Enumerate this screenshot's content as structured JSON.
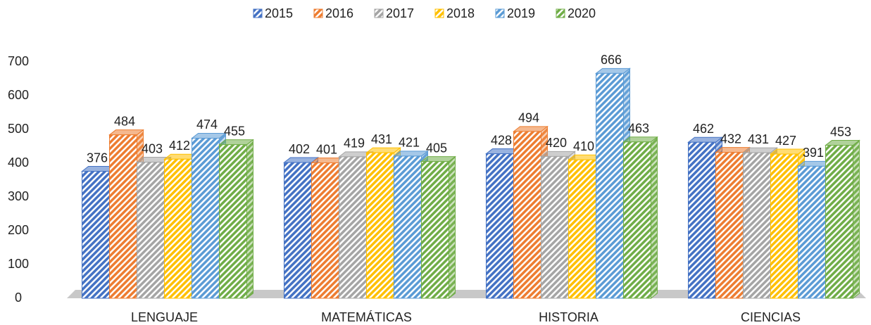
{
  "chart_data": {
    "type": "bar3d",
    "categories": [
      "LENGUAJE",
      "MATEMÁTICAS",
      "HISTORIA",
      "CIENCIAS"
    ],
    "series": [
      {
        "name": "2015",
        "color": "#4472c4",
        "values": [
          376,
          402,
          428,
          462
        ]
      },
      {
        "name": "2016",
        "color": "#ed7d31",
        "values": [
          484,
          401,
          494,
          432
        ]
      },
      {
        "name": "2017",
        "color": "#a5a5a5",
        "values": [
          403,
          419,
          420,
          431
        ]
      },
      {
        "name": "2018",
        "color": "#ffc000",
        "values": [
          412,
          431,
          410,
          427
        ]
      },
      {
        "name": "2019",
        "color": "#5b9bd5",
        "values": [
          474,
          421,
          666,
          391
        ]
      },
      {
        "name": "2020",
        "color": "#70ad47",
        "values": [
          455,
          405,
          463,
          453
        ]
      }
    ],
    "ylim": [
      0,
      700
    ],
    "yticks": [
      0,
      100,
      200,
      300,
      400,
      500,
      600,
      700
    ],
    "legend": "top",
    "grid": false
  }
}
